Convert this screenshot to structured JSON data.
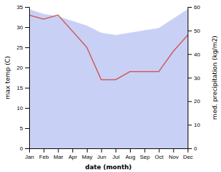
{
  "chart_data": {
    "type": "line",
    "categories": [
      "Jan",
      "Feb",
      "Mar",
      "Apr",
      "May",
      "Jun",
      "Jul",
      "Aug",
      "Sep",
      "Oct",
      "Nov",
      "Dec"
    ],
    "xlabel": "date (month)",
    "ylabel": "max temp (C)",
    "y2label": "med. precipitation (kg/m2)",
    "ylim": [
      0,
      35
    ],
    "yticks": [
      0,
      5,
      10,
      15,
      20,
      25,
      30,
      35
    ],
    "y2lim": [
      0,
      60
    ],
    "y2ticks": [
      0,
      10,
      20,
      30,
      40,
      50,
      60
    ],
    "series": [
      {
        "type": "area",
        "axis": "y2",
        "color": "#c8d0f5",
        "values": [
          59,
          57,
          56,
          54,
          52,
          49,
          48,
          49,
          50,
          51,
          55,
          59
        ]
      },
      {
        "type": "line",
        "color": "#cd5c5c",
        "values": [
          33,
          32,
          33,
          29,
          25,
          17,
          17,
          19,
          19,
          19,
          24,
          28
        ]
      }
    ]
  }
}
